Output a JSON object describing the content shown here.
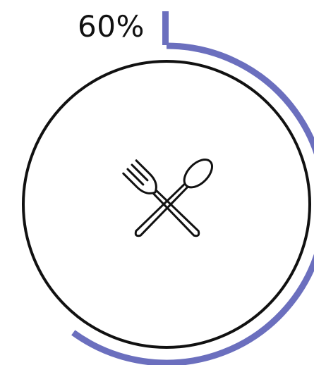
{
  "progress": {
    "label": "60%",
    "value": 0.6,
    "arc_color": "#6b6fbe",
    "tick_color": "#6b6fbe"
  },
  "center_icon": {
    "name": "fork-and-spoon-icon",
    "stroke_color": "#111111"
  },
  "plate": {
    "stroke_color": "#111111",
    "fill_color": "#ffffff"
  }
}
